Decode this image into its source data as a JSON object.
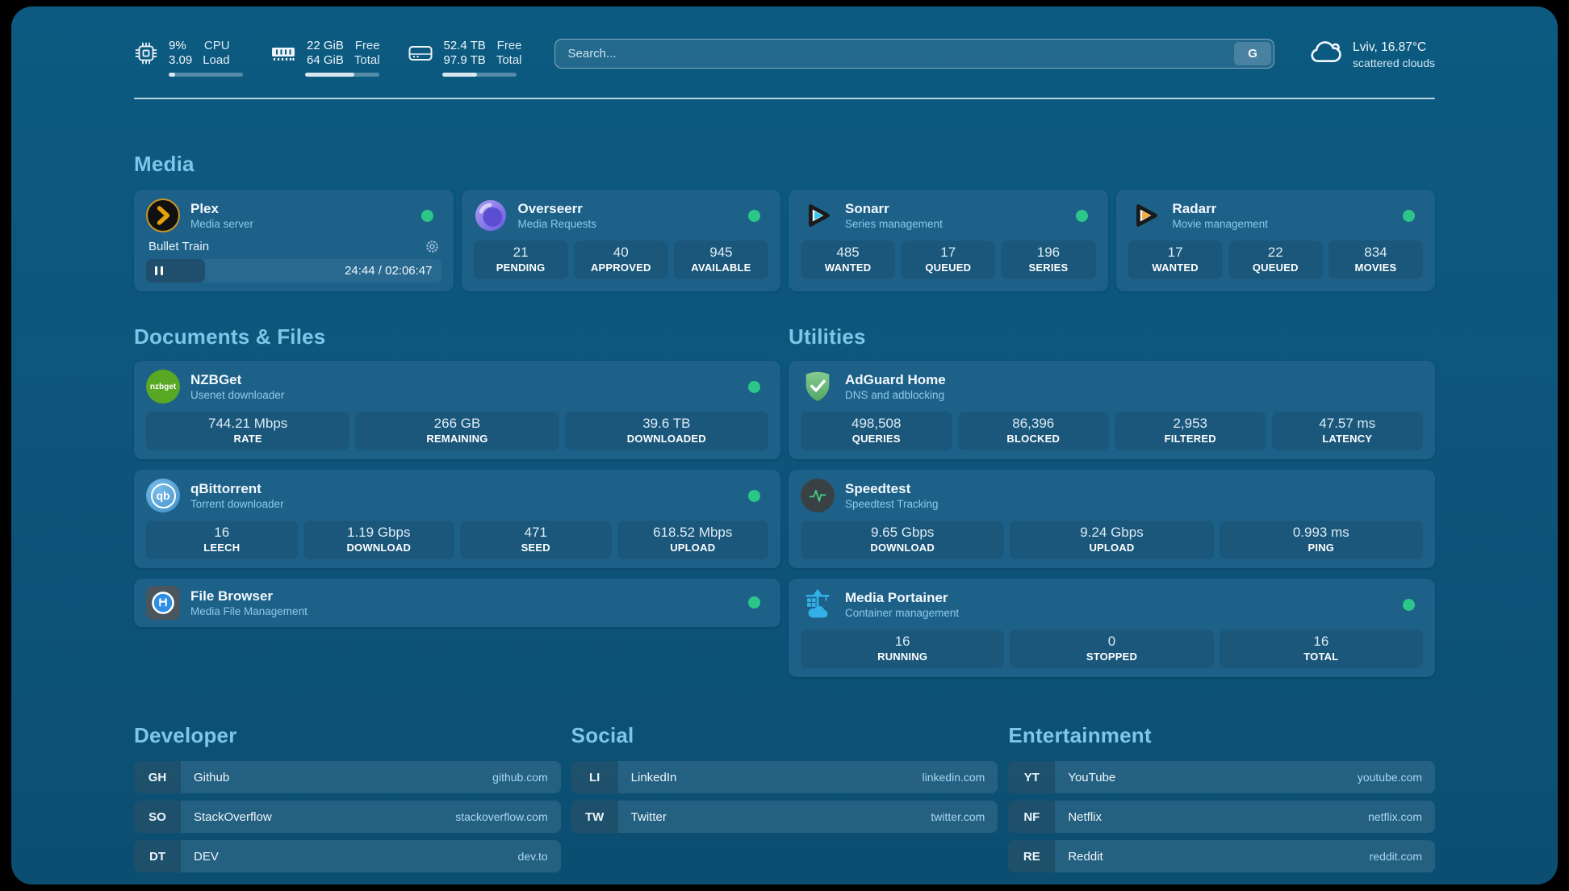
{
  "topbar": {
    "cpu": {
      "value_top": "9%",
      "value_bottom": "3.09",
      "label_top": "CPU",
      "label_bottom": "Load",
      "progress": 9
    },
    "memory": {
      "value_top": "22 GiB",
      "value_bottom": "64 GiB",
      "label_top": "Free",
      "label_bottom": "Total",
      "progress": 66
    },
    "storage": {
      "value_top": "52.4 TB",
      "value_bottom": "97.9 TB",
      "label_top": "Free",
      "label_bottom": "Total",
      "progress": 47
    },
    "search": {
      "placeholder": "Search...",
      "engine_button": "G"
    },
    "weather": {
      "headline": "Lviv, 16.87°C",
      "condition": "scattered clouds"
    }
  },
  "sections": {
    "media": {
      "title": "Media",
      "plex": {
        "name": "Plex",
        "description": "Media server",
        "player": {
          "title": "Bullet Train",
          "time_display": "24:44 / 02:06:47",
          "progress": 20
        }
      },
      "overseerr": {
        "name": "Overseerr",
        "description": "Media Requests",
        "stats": [
          {
            "value": "21",
            "label": "PENDING"
          },
          {
            "value": "40",
            "label": "APPROVED"
          },
          {
            "value": "945",
            "label": "AVAILABLE"
          }
        ]
      },
      "sonarr": {
        "name": "Sonarr",
        "description": "Series management",
        "stats": [
          {
            "value": "485",
            "label": "WANTED"
          },
          {
            "value": "17",
            "label": "QUEUED"
          },
          {
            "value": "196",
            "label": "SERIES"
          }
        ]
      },
      "radarr": {
        "name": "Radarr",
        "description": "Movie management",
        "stats": [
          {
            "value": "17",
            "label": "WANTED"
          },
          {
            "value": "22",
            "label": "QUEUED"
          },
          {
            "value": "834",
            "label": "MOVIES"
          }
        ]
      }
    },
    "documents": {
      "title": "Documents & Files",
      "nzbget": {
        "name": "NZBGet",
        "description": "Usenet downloader",
        "stats": [
          {
            "value": "744.21 Mbps",
            "label": "RATE"
          },
          {
            "value": "266 GB",
            "label": "REMAINING"
          },
          {
            "value": "39.6 TB",
            "label": "DOWNLOADED"
          }
        ]
      },
      "qbittorrent": {
        "name": "qBittorrent",
        "description": "Torrent downloader",
        "stats": [
          {
            "value": "16",
            "label": "LEECH"
          },
          {
            "value": "1.19 Gbps",
            "label": "DOWNLOAD"
          },
          {
            "value": "471",
            "label": "SEED"
          },
          {
            "value": "618.52 Mbps",
            "label": "UPLOAD"
          }
        ]
      },
      "filebrowser": {
        "name": "File Browser",
        "description": "Media File Management"
      }
    },
    "utilities": {
      "title": "Utilities",
      "adguard": {
        "name": "AdGuard Home",
        "description": "DNS and adblocking",
        "stats": [
          {
            "value": "498,508",
            "label": "QUERIES"
          },
          {
            "value": "86,396",
            "label": "BLOCKED"
          },
          {
            "value": "2,953",
            "label": "FILTERED"
          },
          {
            "value": "47.57 ms",
            "label": "LATENCY"
          }
        ]
      },
      "speedtest": {
        "name": "Speedtest",
        "description": "Speedtest Tracking",
        "stats": [
          {
            "value": "9.65 Gbps",
            "label": "DOWNLOAD"
          },
          {
            "value": "9.24 Gbps",
            "label": "UPLOAD"
          },
          {
            "value": "0.993 ms",
            "label": "PING"
          }
        ]
      },
      "portainer": {
        "name": "Media Portainer",
        "description": "Container management",
        "stats": [
          {
            "value": "16",
            "label": "RUNNING"
          },
          {
            "value": "0",
            "label": "STOPPED"
          },
          {
            "value": "16",
            "label": "TOTAL"
          }
        ]
      }
    },
    "bookmarks": {
      "developer": {
        "title": "Developer",
        "links": [
          {
            "abbr": "GH",
            "name": "Github",
            "domain": "github.com"
          },
          {
            "abbr": "SO",
            "name": "StackOverflow",
            "domain": "stackoverflow.com"
          },
          {
            "abbr": "DT",
            "name": "DEV",
            "domain": "dev.to"
          }
        ]
      },
      "social": {
        "title": "Social",
        "links": [
          {
            "abbr": "LI",
            "name": "LinkedIn",
            "domain": "linkedin.com"
          },
          {
            "abbr": "TW",
            "name": "Twitter",
            "domain": "twitter.com"
          }
        ]
      },
      "entertainment": {
        "title": "Entertainment",
        "links": [
          {
            "abbr": "YT",
            "name": "YouTube",
            "domain": "youtube.com"
          },
          {
            "abbr": "NF",
            "name": "Netflix",
            "domain": "netflix.com"
          },
          {
            "abbr": "RE",
            "name": "Reddit",
            "domain": "reddit.com"
          }
        ]
      }
    }
  },
  "colors": {
    "online_dot": "#2cc689",
    "accent": "#7cc7e8",
    "card": "#1d6189"
  }
}
